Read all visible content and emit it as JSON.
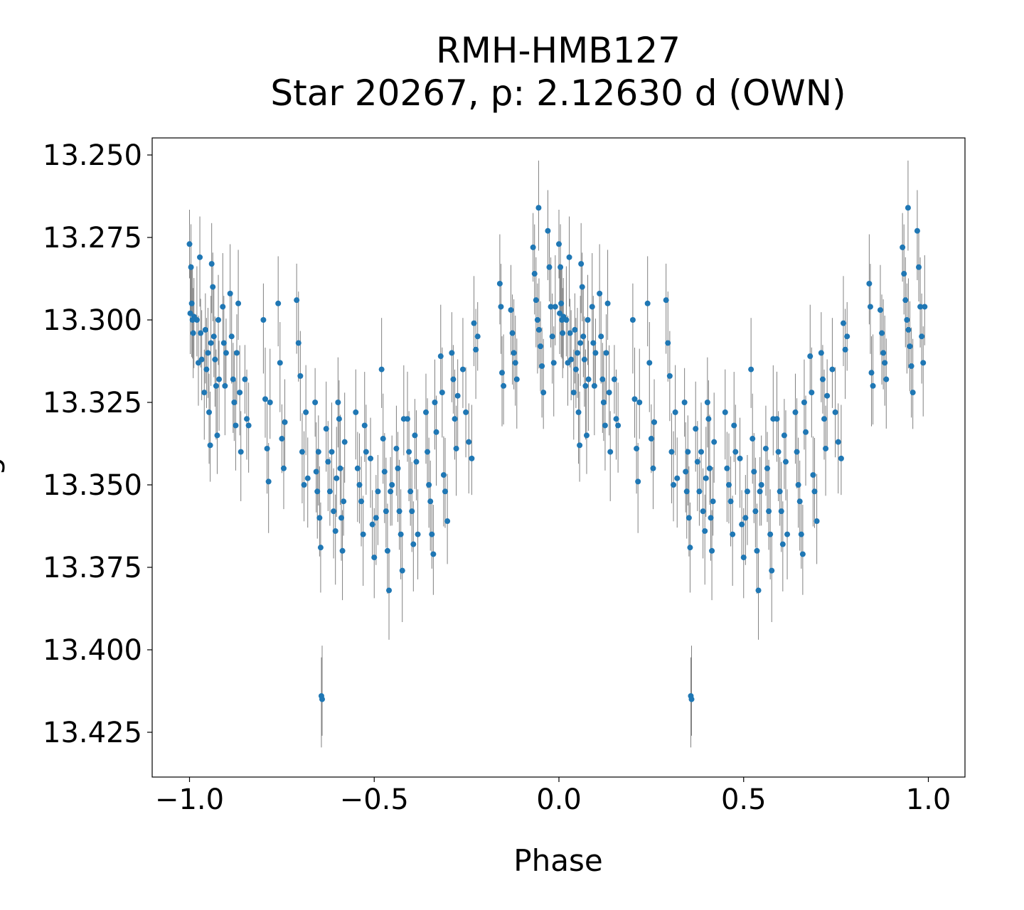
{
  "chart_data": {
    "type": "scatter",
    "title": "RMH-HMB127",
    "subtitle": "Star 20267, p: 2.12630 d (OWN)",
    "xlabel": "Phase",
    "ylabel": "Magnitude",
    "xlim": [
      -1.1,
      1.1
    ],
    "ylim": [
      13.444,
      13.244
    ],
    "y_inverted": true,
    "xticks": [
      -1.0,
      -0.5,
      0.0,
      0.5,
      1.0
    ],
    "xtick_labels": [
      "−1.0",
      "−0.5",
      "0.0",
      "0.5",
      "1.0"
    ],
    "yticks": [
      13.25,
      13.275,
      13.3,
      13.325,
      13.35,
      13.375,
      13.4,
      13.425
    ],
    "ytick_labels": [
      "13.250",
      "13.275",
      "13.300",
      "13.325",
      "13.350",
      "13.375",
      "13.400",
      "13.425"
    ],
    "point_color": "#1f77b4",
    "errorbar_color": "#808080",
    "yerr": 0.013,
    "folding": "each point plotted at phase and phase-1",
    "points": [
      [
        0.0,
        13.277
      ],
      [
        0.002,
        13.298
      ],
      [
        0.004,
        13.284
      ],
      [
        0.006,
        13.295
      ],
      [
        0.008,
        13.3
      ],
      [
        0.01,
        13.304
      ],
      [
        0.012,
        13.299
      ],
      [
        0.02,
        13.3
      ],
      [
        0.024,
        13.313
      ],
      [
        0.028,
        13.281
      ],
      [
        0.03,
        13.304
      ],
      [
        0.033,
        13.312
      ],
      [
        0.04,
        13.322
      ],
      [
        0.043,
        13.303
      ],
      [
        0.046,
        13.315
      ],
      [
        0.05,
        13.31
      ],
      [
        0.053,
        13.328
      ],
      [
        0.056,
        13.338
      ],
      [
        0.058,
        13.307
      ],
      [
        0.06,
        13.283
      ],
      [
        0.063,
        13.29
      ],
      [
        0.066,
        13.305
      ],
      [
        0.069,
        13.312
      ],
      [
        0.072,
        13.32
      ],
      [
        0.075,
        13.335
      ],
      [
        0.078,
        13.3
      ],
      [
        0.08,
        13.318
      ],
      [
        0.09,
        13.296
      ],
      [
        0.093,
        13.307
      ],
      [
        0.096,
        13.32
      ],
      [
        0.099,
        13.31
      ],
      [
        0.11,
        13.292
      ],
      [
        0.114,
        13.305
      ],
      [
        0.118,
        13.318
      ],
      [
        0.121,
        13.325
      ],
      [
        0.125,
        13.332
      ],
      [
        0.128,
        13.31
      ],
      [
        0.132,
        13.295
      ],
      [
        0.136,
        13.322
      ],
      [
        0.139,
        13.34
      ],
      [
        0.15,
        13.318
      ],
      [
        0.155,
        13.33
      ],
      [
        0.16,
        13.332
      ],
      [
        0.2,
        13.3
      ],
      [
        0.205,
        13.324
      ],
      [
        0.21,
        13.339
      ],
      [
        0.214,
        13.349
      ],
      [
        0.218,
        13.325
      ],
      [
        0.24,
        13.295
      ],
      [
        0.245,
        13.313
      ],
      [
        0.25,
        13.336
      ],
      [
        0.255,
        13.345
      ],
      [
        0.258,
        13.331
      ],
      [
        0.29,
        13.294
      ],
      [
        0.295,
        13.307
      ],
      [
        0.3,
        13.317
      ],
      [
        0.305,
        13.34
      ],
      [
        0.31,
        13.35
      ],
      [
        0.315,
        13.328
      ],
      [
        0.32,
        13.348
      ],
      [
        0.34,
        13.325
      ],
      [
        0.343,
        13.346
      ],
      [
        0.346,
        13.352
      ],
      [
        0.349,
        13.34
      ],
      [
        0.352,
        13.36
      ],
      [
        0.355,
        13.369
      ],
      [
        0.357,
        13.414
      ],
      [
        0.359,
        13.415
      ],
      [
        0.37,
        13.333
      ],
      [
        0.375,
        13.343
      ],
      [
        0.38,
        13.352
      ],
      [
        0.385,
        13.34
      ],
      [
        0.39,
        13.358
      ],
      [
        0.395,
        13.364
      ],
      [
        0.398,
        13.348
      ],
      [
        0.402,
        13.325
      ],
      [
        0.405,
        13.33
      ],
      [
        0.408,
        13.345
      ],
      [
        0.411,
        13.36
      ],
      [
        0.414,
        13.37
      ],
      [
        0.417,
        13.355
      ],
      [
        0.42,
        13.337
      ],
      [
        0.45,
        13.328
      ],
      [
        0.455,
        13.345
      ],
      [
        0.46,
        13.35
      ],
      [
        0.465,
        13.355
      ],
      [
        0.47,
        13.365
      ],
      [
        0.474,
        13.332
      ],
      [
        0.478,
        13.34
      ],
      [
        0.49,
        13.342
      ],
      [
        0.495,
        13.362
      ],
      [
        0.5,
        13.372
      ],
      [
        0.505,
        13.36
      ],
      [
        0.51,
        13.352
      ],
      [
        0.52,
        13.315
      ],
      [
        0.524,
        13.336
      ],
      [
        0.528,
        13.346
      ],
      [
        0.532,
        13.358
      ],
      [
        0.536,
        13.37
      ],
      [
        0.54,
        13.382
      ],
      [
        0.544,
        13.352
      ],
      [
        0.548,
        13.35
      ],
      [
        0.56,
        13.339
      ],
      [
        0.564,
        13.345
      ],
      [
        0.568,
        13.358
      ],
      [
        0.572,
        13.365
      ],
      [
        0.576,
        13.376
      ],
      [
        0.58,
        13.33
      ],
      [
        0.59,
        13.33
      ],
      [
        0.594,
        13.34
      ],
      [
        0.598,
        13.352
      ],
      [
        0.602,
        13.358
      ],
      [
        0.606,
        13.368
      ],
      [
        0.61,
        13.335
      ],
      [
        0.614,
        13.343
      ],
      [
        0.618,
        13.365
      ],
      [
        0.64,
        13.328
      ],
      [
        0.644,
        13.34
      ],
      [
        0.648,
        13.35
      ],
      [
        0.652,
        13.355
      ],
      [
        0.656,
        13.365
      ],
      [
        0.66,
        13.371
      ],
      [
        0.664,
        13.325
      ],
      [
        0.668,
        13.334
      ],
      [
        0.68,
        13.311
      ],
      [
        0.684,
        13.322
      ],
      [
        0.688,
        13.347
      ],
      [
        0.692,
        13.352
      ],
      [
        0.698,
        13.361
      ],
      [
        0.71,
        13.31
      ],
      [
        0.714,
        13.318
      ],
      [
        0.718,
        13.33
      ],
      [
        0.722,
        13.339
      ],
      [
        0.726,
        13.323
      ],
      [
        0.74,
        13.315
      ],
      [
        0.748,
        13.328
      ],
      [
        0.756,
        13.337
      ],
      [
        0.764,
        13.342
      ],
      [
        0.77,
        13.301
      ],
      [
        0.775,
        13.309
      ],
      [
        0.78,
        13.305
      ],
      [
        0.84,
        13.289
      ],
      [
        0.843,
        13.296
      ],
      [
        0.846,
        13.316
      ],
      [
        0.85,
        13.32
      ],
      [
        0.87,
        13.297
      ],
      [
        0.874,
        13.304
      ],
      [
        0.878,
        13.31
      ],
      [
        0.882,
        13.313
      ],
      [
        0.886,
        13.318
      ],
      [
        0.93,
        13.278
      ],
      [
        0.934,
        13.286
      ],
      [
        0.938,
        13.294
      ],
      [
        0.942,
        13.3
      ],
      [
        0.946,
        13.303
      ],
      [
        0.95,
        13.308
      ],
      [
        0.954,
        13.314
      ],
      [
        0.958,
        13.322
      ],
      [
        0.945,
        13.266
      ],
      [
        0.97,
        13.273
      ],
      [
        0.974,
        13.284
      ],
      [
        0.978,
        13.296
      ],
      [
        0.982,
        13.305
      ],
      [
        0.986,
        13.313
      ],
      [
        0.99,
        13.296
      ]
    ]
  }
}
